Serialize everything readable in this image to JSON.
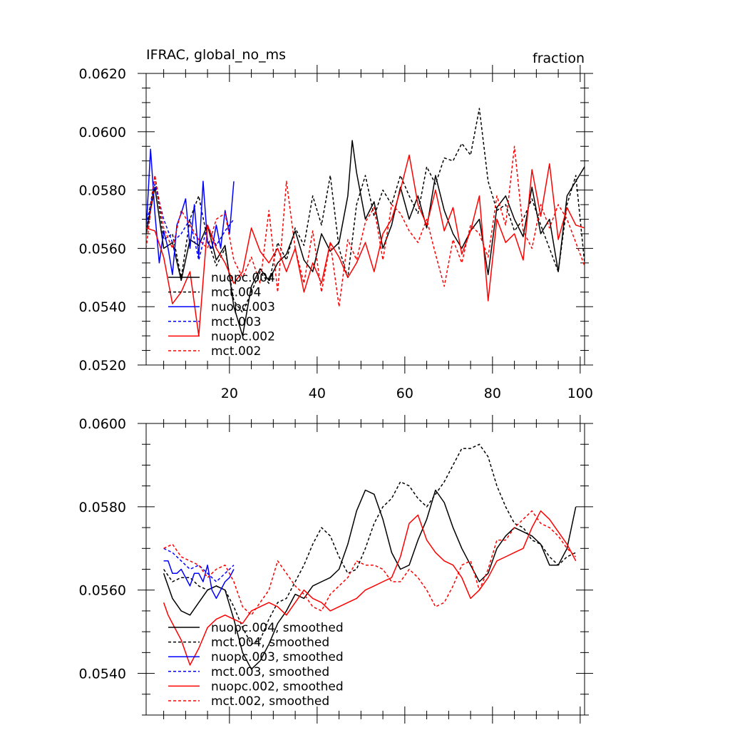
{
  "chart_data": [
    {
      "type": "line",
      "title": "IFRAC, global_no_ms",
      "right_label": "fraction",
      "xlim": [
        1,
        101
      ],
      "ylim": [
        0.052,
        0.062
      ],
      "x_ticks": [
        "20",
        "40",
        "60",
        "80",
        "100"
      ],
      "y_ticks": [
        "0.0520",
        "0.0540",
        "0.0560",
        "0.0580",
        "0.0600",
        "0.0620"
      ],
      "legend_position": "bottom-left",
      "series": [
        {
          "name": "nuopc.004",
          "color": "#000000",
          "dash": "solid",
          "x": [
            1,
            3,
            5,
            7,
            9,
            11,
            13,
            15,
            17,
            19,
            21,
            23,
            25,
            27,
            29,
            31,
            33,
            35,
            37,
            39,
            41,
            43,
            45,
            47,
            48,
            49,
            51,
            53,
            55,
            57,
            59,
            61,
            63,
            65,
            67,
            69,
            71,
            73,
            75,
            77,
            79,
            81,
            83,
            85,
            87,
            89,
            91,
            93,
            95,
            97,
            99,
            101
          ],
          "values": [
            0.0565,
            0.0581,
            0.056,
            0.0562,
            0.0549,
            0.0563,
            0.0561,
            0.0568,
            0.0556,
            0.0561,
            0.054,
            0.053,
            0.0547,
            0.0553,
            0.0549,
            0.0555,
            0.0558,
            0.0566,
            0.0556,
            0.0552,
            0.0565,
            0.0559,
            0.0562,
            0.0578,
            0.0597,
            0.0586,
            0.057,
            0.0576,
            0.056,
            0.0568,
            0.0581,
            0.057,
            0.0578,
            0.0567,
            0.0585,
            0.0573,
            0.0565,
            0.056,
            0.0566,
            0.057,
            0.0551,
            0.0574,
            0.0578,
            0.057,
            0.0564,
            0.0581,
            0.0565,
            0.057,
            0.0552,
            0.0578,
            0.0583,
            0.0588
          ]
        },
        {
          "name": "mct.004",
          "color": "#000000",
          "dash": "dashed",
          "x": [
            1,
            3,
            5,
            7,
            9,
            11,
            13,
            15,
            17,
            19,
            21,
            23,
            25,
            27,
            29,
            31,
            33,
            35,
            37,
            39,
            41,
            43,
            45,
            47,
            49,
            51,
            53,
            55,
            57,
            59,
            61,
            63,
            65,
            67,
            69,
            71,
            73,
            75,
            77,
            79,
            81,
            83,
            85,
            87,
            89,
            91,
            93,
            95,
            97,
            99,
            101
          ],
          "values": [
            0.0565,
            0.0585,
            0.0563,
            0.0565,
            0.055,
            0.057,
            0.0578,
            0.0563,
            0.0554,
            0.056,
            0.0542,
            0.0538,
            0.0545,
            0.0552,
            0.0548,
            0.0562,
            0.0556,
            0.0567,
            0.0561,
            0.0578,
            0.0568,
            0.0585,
            0.056,
            0.055,
            0.0575,
            0.0585,
            0.0571,
            0.058,
            0.0575,
            0.0585,
            0.0578,
            0.0572,
            0.0588,
            0.0582,
            0.0591,
            0.059,
            0.0596,
            0.0592,
            0.0608,
            0.0583,
            0.0573,
            0.0575,
            0.0566,
            0.057,
            0.0577,
            0.0568,
            0.056,
            0.0552,
            0.0575,
            0.0585,
            0.0555
          ]
        },
        {
          "name": "nuopc.003",
          "color": "#0000ff",
          "dash": "solid",
          "x": [
            1,
            2,
            3,
            4,
            5,
            6,
            7,
            8,
            9,
            10,
            11,
            12,
            13,
            14,
            15,
            16,
            17,
            18,
            19,
            20,
            21
          ],
          "values": [
            0.0566,
            0.0594,
            0.0572,
            0.0555,
            0.0566,
            0.056,
            0.0551,
            0.0568,
            0.0572,
            0.0577,
            0.056,
            0.0575,
            0.0557,
            0.0583,
            0.0562,
            0.056,
            0.0568,
            0.056,
            0.0573,
            0.0565,
            0.0583
          ]
        },
        {
          "name": "mct.003",
          "color": "#0000ff",
          "dash": "dashed",
          "x": [
            1,
            3,
            5,
            7,
            9,
            11,
            13,
            15,
            17,
            19,
            21
          ],
          "values": [
            0.0568,
            0.0582,
            0.057,
            0.0562,
            0.0565,
            0.057,
            0.0556,
            0.0568,
            0.0561,
            0.0566,
            0.057
          ]
        },
        {
          "name": "nuopc.002",
          "color": "#ff0000",
          "dash": "solid",
          "x": [
            1,
            3,
            5,
            7,
            9,
            11,
            13,
            15,
            17,
            19,
            21,
            23,
            25,
            27,
            29,
            31,
            33,
            35,
            37,
            39,
            41,
            43,
            45,
            47,
            49,
            51,
            53,
            55,
            57,
            59,
            61,
            63,
            65,
            67,
            69,
            71,
            73,
            75,
            77,
            79,
            81,
            83,
            85,
            87,
            89,
            91,
            93,
            95,
            97,
            99,
            101
          ],
          "values": [
            0.0567,
            0.0566,
            0.0557,
            0.0541,
            0.0545,
            0.0552,
            0.053,
            0.0568,
            0.056,
            0.0555,
            0.0548,
            0.0552,
            0.0567,
            0.0559,
            0.0555,
            0.056,
            0.0552,
            0.056,
            0.0545,
            0.0555,
            0.0548,
            0.0562,
            0.0557,
            0.055,
            0.0555,
            0.0562,
            0.0552,
            0.0565,
            0.057,
            0.058,
            0.0592,
            0.0575,
            0.0568,
            0.058,
            0.0566,
            0.0574,
            0.0558,
            0.0566,
            0.0578,
            0.0542,
            0.057,
            0.0562,
            0.0565,
            0.0556,
            0.0587,
            0.0571,
            0.0589,
            0.0563,
            0.0574,
            0.0568,
            0.0567
          ]
        },
        {
          "name": "mct.002",
          "color": "#ff0000",
          "dash": "dashed",
          "x": [
            1,
            3,
            5,
            7,
            9,
            11,
            13,
            15,
            17,
            19,
            21,
            23,
            25,
            27,
            29,
            31,
            33,
            35,
            37,
            39,
            41,
            43,
            45,
            47,
            49,
            51,
            53,
            55,
            57,
            59,
            61,
            63,
            65,
            67,
            69,
            71,
            73,
            75,
            77,
            79,
            81,
            83,
            85,
            87,
            89,
            91,
            93,
            95,
            97,
            99,
            101
          ],
          "values": [
            0.056,
            0.0585,
            0.0567,
            0.056,
            0.0573,
            0.0568,
            0.0563,
            0.056,
            0.057,
            0.0572,
            0.0556,
            0.055,
            0.0557,
            0.0548,
            0.0573,
            0.0545,
            0.0583,
            0.056,
            0.0548,
            0.0566,
            0.0545,
            0.0562,
            0.054,
            0.0563,
            0.0556,
            0.0569,
            0.0574,
            0.0556,
            0.0575,
            0.0572,
            0.0566,
            0.0562,
            0.057,
            0.0558,
            0.0547,
            0.0563,
            0.0555,
            0.0568,
            0.0565,
            0.0557,
            0.0578,
            0.0568,
            0.0595,
            0.0566,
            0.056,
            0.0575,
            0.0567,
            0.0575,
            0.057,
            0.0562,
            0.0554
          ]
        }
      ]
    },
    {
      "type": "line",
      "xlim": [
        1,
        101
      ],
      "ylim": [
        0.053,
        0.06
      ],
      "x_ticks": [
        "",
        "",
        "",
        "",
        ""
      ],
      "y_ticks": [
        "0.0540",
        "0.0560",
        "0.0580",
        "0.0600"
      ],
      "legend_position": "bottom-left",
      "series": [
        {
          "name": "nuopc.004, smoothed",
          "color": "#000000",
          "dash": "solid",
          "x": [
            5,
            7,
            9,
            11,
            13,
            15,
            17,
            19,
            21,
            23,
            25,
            27,
            29,
            31,
            33,
            35,
            37,
            39,
            41,
            43,
            45,
            47,
            49,
            51,
            53,
            55,
            57,
            59,
            61,
            63,
            65,
            67,
            69,
            71,
            73,
            75,
            77,
            79,
            81,
            83,
            85,
            87,
            89,
            91,
            93,
            95,
            97,
            99
          ],
          "values": [
            0.0564,
            0.0558,
            0.0555,
            0.0554,
            0.0557,
            0.056,
            0.0561,
            0.056,
            0.0553,
            0.0545,
            0.0541,
            0.0543,
            0.0547,
            0.0552,
            0.0555,
            0.0559,
            0.0558,
            0.0561,
            0.0562,
            0.0563,
            0.0565,
            0.0571,
            0.0579,
            0.0584,
            0.0583,
            0.0577,
            0.0569,
            0.0565,
            0.0566,
            0.0572,
            0.0577,
            0.0584,
            0.0581,
            0.0575,
            0.057,
            0.0566,
            0.0562,
            0.0564,
            0.057,
            0.0573,
            0.0575,
            0.0574,
            0.0573,
            0.0571,
            0.0566,
            0.0566,
            0.057,
            0.058
          ]
        },
        {
          "name": "mct.004, smoothed",
          "color": "#000000",
          "dash": "dashed",
          "x": [
            5,
            7,
            9,
            11,
            13,
            15,
            17,
            19,
            21,
            23,
            25,
            27,
            29,
            31,
            33,
            35,
            37,
            39,
            41,
            43,
            45,
            47,
            49,
            51,
            53,
            55,
            57,
            59,
            61,
            63,
            65,
            67,
            69,
            71,
            73,
            75,
            77,
            79,
            81,
            83,
            85,
            87,
            89,
            91,
            93,
            95,
            97,
            99
          ],
          "values": [
            0.0565,
            0.0562,
            0.0563,
            0.0563,
            0.0561,
            0.056,
            0.0561,
            0.056,
            0.0556,
            0.0551,
            0.0547,
            0.0548,
            0.0553,
            0.0557,
            0.0558,
            0.0562,
            0.0566,
            0.0571,
            0.0575,
            0.0573,
            0.0568,
            0.0564,
            0.0565,
            0.057,
            0.0576,
            0.058,
            0.0582,
            0.0586,
            0.0585,
            0.0582,
            0.058,
            0.0583,
            0.0586,
            0.059,
            0.0594,
            0.0594,
            0.0595,
            0.0592,
            0.0585,
            0.058,
            0.0576,
            0.0575,
            0.0572,
            0.0571,
            0.0568,
            0.0566,
            0.0568,
            0.0569
          ]
        },
        {
          "name": "nuopc.003, smoothed",
          "color": "#0000ff",
          "dash": "solid",
          "x": [
            5,
            6,
            7,
            8,
            9,
            10,
            11,
            12,
            13,
            14,
            15,
            16,
            17,
            18,
            19,
            20,
            21
          ],
          "values": [
            0.0567,
            0.0567,
            0.0564,
            0.0564,
            0.0565,
            0.0563,
            0.0561,
            0.0564,
            0.0564,
            0.0562,
            0.0566,
            0.056,
            0.0558,
            0.056,
            0.0562,
            0.0563,
            0.0565
          ]
        },
        {
          "name": "mct.003, smoothed",
          "color": "#0000ff",
          "dash": "dashed",
          "x": [
            5,
            7,
            9,
            11,
            13,
            15,
            17,
            19,
            21
          ],
          "values": [
            0.057,
            0.0569,
            0.0567,
            0.0565,
            0.0566,
            0.0564,
            0.0562,
            0.0564,
            0.0566
          ]
        },
        {
          "name": "nuopc.002, smoothed",
          "color": "#ff0000",
          "dash": "solid",
          "x": [
            5,
            6,
            7,
            9,
            11,
            13,
            15,
            17,
            19,
            21,
            23,
            25,
            27,
            29,
            31,
            33,
            35,
            37,
            39,
            41,
            43,
            45,
            47,
            49,
            51,
            53,
            55,
            57,
            59,
            61,
            63,
            65,
            67,
            69,
            71,
            73,
            75,
            77,
            79,
            81,
            83,
            85,
            87,
            89,
            91,
            93,
            95,
            97,
            99
          ],
          "values": [
            0.0557,
            0.0554,
            0.0552,
            0.0548,
            0.0542,
            0.0546,
            0.0551,
            0.0553,
            0.0554,
            0.0553,
            0.0552,
            0.0555,
            0.0556,
            0.0557,
            0.0556,
            0.0554,
            0.0557,
            0.056,
            0.0558,
            0.0557,
            0.0555,
            0.0556,
            0.0557,
            0.0558,
            0.056,
            0.0561,
            0.0562,
            0.0563,
            0.0568,
            0.0576,
            0.0578,
            0.0572,
            0.0569,
            0.0567,
            0.0566,
            0.0563,
            0.0558,
            0.056,
            0.0563,
            0.0567,
            0.0568,
            0.0569,
            0.057,
            0.0575,
            0.0579,
            0.0577,
            0.0574,
            0.0571,
            0.0567
          ]
        },
        {
          "name": "mct.002, smoothed",
          "color": "#ff0000",
          "dash": "dashed",
          "x": [
            5,
            7,
            9,
            11,
            13,
            15,
            17,
            19,
            21,
            23,
            25,
            27,
            29,
            31,
            33,
            35,
            37,
            39,
            41,
            43,
            45,
            47,
            49,
            51,
            53,
            55,
            57,
            59,
            61,
            63,
            65,
            67,
            69,
            71,
            73,
            75,
            77,
            79,
            81,
            83,
            85,
            87,
            89,
            91,
            93,
            95,
            97,
            99
          ],
          "values": [
            0.057,
            0.0571,
            0.0568,
            0.0567,
            0.0566,
            0.0563,
            0.0565,
            0.0566,
            0.0562,
            0.0556,
            0.0554,
            0.0557,
            0.056,
            0.0567,
            0.0564,
            0.0561,
            0.0559,
            0.0556,
            0.0555,
            0.0559,
            0.0561,
            0.0563,
            0.0567,
            0.0566,
            0.0566,
            0.0565,
            0.0562,
            0.0562,
            0.0565,
            0.0563,
            0.056,
            0.0556,
            0.0557,
            0.0561,
            0.0566,
            0.0567,
            0.056,
            0.0565,
            0.0572,
            0.0572,
            0.0575,
            0.0577,
            0.0579,
            0.0576,
            0.0575,
            0.0573,
            0.057,
            0.0568
          ]
        }
      ]
    }
  ]
}
